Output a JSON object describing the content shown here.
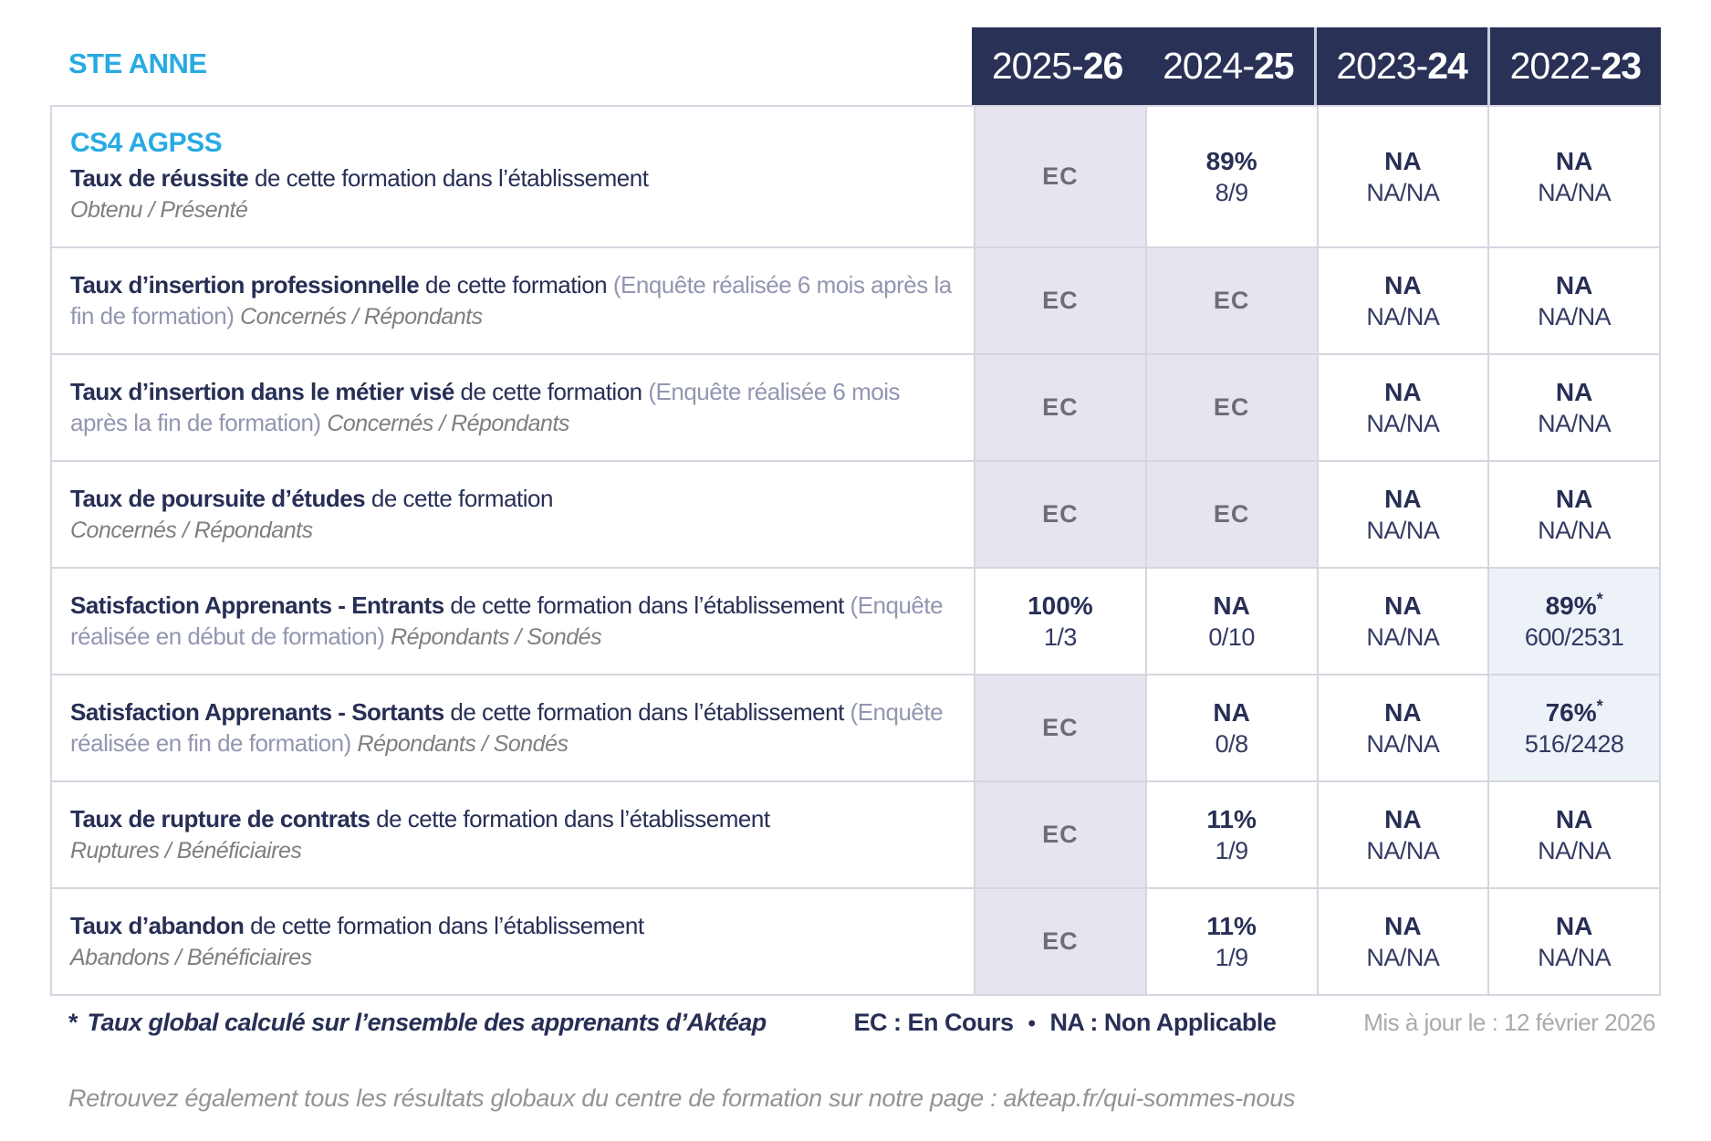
{
  "header": {
    "establishment": "STE ANNE",
    "years": [
      {
        "prefix": "2025-",
        "bold": "26"
      },
      {
        "prefix": "2024-",
        "bold": "25"
      },
      {
        "prefix": "2023-",
        "bold": "24"
      },
      {
        "prefix": "2022-",
        "bold": "23"
      }
    ]
  },
  "course": "CS4 AGPSS",
  "rows": [
    {
      "title": "Taux de réussite",
      "desc": "de cette formation dans l’établissement",
      "paren": "",
      "subtitle": "Obtenu / Présenté",
      "cells": [
        {
          "main": "EC",
          "sub": ""
        },
        {
          "main": "89%",
          "sub": "8/9"
        },
        {
          "main": "NA",
          "sub": "NA/NA"
        },
        {
          "main": "NA",
          "sub": "NA/NA"
        }
      ]
    },
    {
      "title": "Taux d’insertion professionnelle",
      "desc": "de cette formation",
      "paren": "(Enquête réalisée 6 mois après la fin de formation)",
      "subtitle": "Concernés / Répondants",
      "cells": [
        {
          "main": "EC",
          "sub": ""
        },
        {
          "main": "EC",
          "sub": ""
        },
        {
          "main": "NA",
          "sub": "NA/NA"
        },
        {
          "main": "NA",
          "sub": "NA/NA"
        }
      ]
    },
    {
      "title": "Taux d’insertion dans le métier visé",
      "desc": "de cette formation",
      "paren": "(Enquête réalisée 6 mois après la fin de formation)",
      "subtitle": "Concernés / Répondants",
      "cells": [
        {
          "main": "EC",
          "sub": ""
        },
        {
          "main": "EC",
          "sub": ""
        },
        {
          "main": "NA",
          "sub": "NA/NA"
        },
        {
          "main": "NA",
          "sub": "NA/NA"
        }
      ]
    },
    {
      "title": "Taux de poursuite d’études",
      "desc": "de cette formation",
      "paren": "",
      "subtitle": "Concernés / Répondants",
      "cells": [
        {
          "main": "EC",
          "sub": ""
        },
        {
          "main": "EC",
          "sub": ""
        },
        {
          "main": "NA",
          "sub": "NA/NA"
        },
        {
          "main": "NA",
          "sub": "NA/NA"
        }
      ]
    },
    {
      "title": "Satisfaction Apprenants - Entrants",
      "desc": "de cette formation dans l’établissement",
      "paren": "(Enquête réalisée en début de formation)",
      "subtitle": "Répondants / Sondés",
      "cells": [
        {
          "main": "100%",
          "sub": "1/3"
        },
        {
          "main": "NA",
          "sub": "0/10"
        },
        {
          "main": "NA",
          "sub": "NA/NA"
        },
        {
          "main": "89%",
          "star": "*",
          "sub": "600/2531"
        }
      ]
    },
    {
      "title": "Satisfaction Apprenants - Sortants",
      "desc": "de cette formation dans l’établissement",
      "paren": "(Enquête réalisée en fin de formation)",
      "subtitle": "Répondants / Sondés",
      "cells": [
        {
          "main": "EC",
          "sub": ""
        },
        {
          "main": "NA",
          "sub": "0/8"
        },
        {
          "main": "NA",
          "sub": "NA/NA"
        },
        {
          "main": "76%",
          "star": "*",
          "sub": "516/2428"
        }
      ]
    },
    {
      "title": "Taux de rupture de contrats",
      "desc": "de cette formation dans l’établissement",
      "paren": "",
      "subtitle": "Ruptures / Bénéficiaires",
      "cells": [
        {
          "main": "EC",
          "sub": ""
        },
        {
          "main": "11%",
          "sub": "1/9"
        },
        {
          "main": "NA",
          "sub": "NA/NA"
        },
        {
          "main": "NA",
          "sub": "NA/NA"
        }
      ]
    },
    {
      "title": "Taux d’abandon",
      "desc": "de cette formation dans l’établissement",
      "paren": "",
      "subtitle": "Abandons / Bénéficiaires",
      "cells": [
        {
          "main": "EC",
          "sub": ""
        },
        {
          "main": "11%",
          "sub": "1/9"
        },
        {
          "main": "NA",
          "sub": "NA/NA"
        },
        {
          "main": "NA",
          "sub": "NA/NA"
        }
      ]
    }
  ],
  "footer": {
    "star": "*",
    "note": "Taux global calculé sur l’ensemble des apprenants d’Aktéap",
    "legend_ec": "EC : En Cours",
    "legend_sep": "•",
    "legend_na": "NA : Non Applicable",
    "updated": "Mis à jour le : 12 février 2026",
    "more_info": "Retrouvez également tous les résultats globaux du centre de formation sur notre page : akteap.fr/qui-sommes-nous"
  }
}
